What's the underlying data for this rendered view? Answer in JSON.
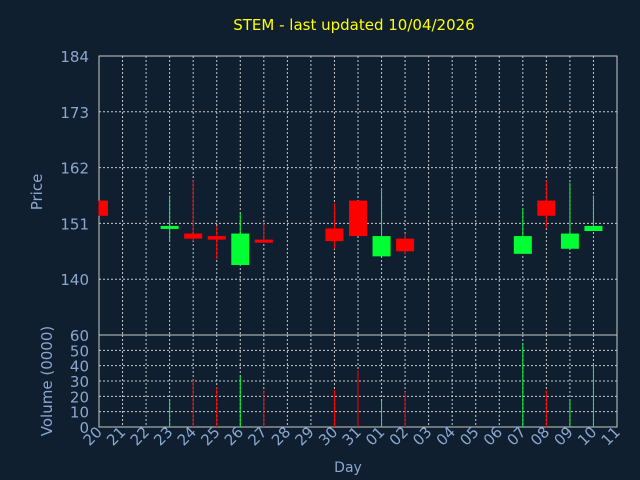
{
  "chart_data": {
    "type": "candlestick",
    "title": "STEM - last updated 10/04/2026",
    "price_panel": {
      "ylabel": "Price",
      "ylim": [
        129,
        184
      ],
      "yticks": [
        140,
        151,
        162,
        173,
        184
      ],
      "grid": true
    },
    "volume_panel": {
      "ylabel": "Volume (0000)",
      "ylim": [
        0,
        60
      ],
      "yticks": [
        0,
        10,
        20,
        30,
        40,
        50,
        60
      ],
      "grid": true
    },
    "xlabel": "Day",
    "x_ticks": [
      "20",
      "21",
      "22",
      "23",
      "24",
      "25",
      "26",
      "27",
      "28",
      "29",
      "30",
      "31",
      "01",
      "02",
      "03",
      "04",
      "05",
      "06",
      "07",
      "08",
      "09",
      "10",
      "11"
    ],
    "candles": [
      {
        "day": "20",
        "open": 155.5,
        "high": 155.5,
        "low": 152.5,
        "close": 152.5
      },
      {
        "day": "23",
        "open": 150.0,
        "high": 156.5,
        "low": 147.5,
        "close": 150.5
      },
      {
        "day": "24",
        "open": 149.0,
        "high": 159.5,
        "low": 147.5,
        "close": 148.0
      },
      {
        "day": "25",
        "open": 148.5,
        "high": 150.5,
        "low": 144.0,
        "close": 147.8
      },
      {
        "day": "26",
        "open": 142.8,
        "high": 153.0,
        "low": 142.8,
        "close": 149.0
      },
      {
        "day": "27",
        "open": 147.8,
        "high": 151.0,
        "low": 147.2,
        "close": 147.2
      },
      {
        "day": "30",
        "open": 150.0,
        "high": 155.0,
        "low": 146.0,
        "close": 147.5
      },
      {
        "day": "31",
        "open": 155.5,
        "high": 155.5,
        "low": 148.5,
        "close": 148.5
      },
      {
        "day": "01",
        "open": 144.5,
        "high": 158.0,
        "low": 144.5,
        "close": 148.5
      },
      {
        "day": "02",
        "open": 148.0,
        "high": 149.0,
        "low": 145.0,
        "close": 145.5
      },
      {
        "day": "07",
        "open": 145.0,
        "high": 154.0,
        "low": 145.0,
        "close": 148.5
      },
      {
        "day": "08",
        "open": 155.5,
        "high": 159.5,
        "low": 150.0,
        "close": 152.5
      },
      {
        "day": "09",
        "open": 146.0,
        "high": 159.0,
        "low": 146.0,
        "close": 149.0
      },
      {
        "day": "10",
        "open": 149.5,
        "high": 156.5,
        "low": 149.5,
        "close": 150.5
      }
    ],
    "volume": [
      {
        "day": "23",
        "value": 18,
        "direction": "up"
      },
      {
        "day": "24",
        "value": 31,
        "direction": "down"
      },
      {
        "day": "25",
        "value": 26,
        "direction": "down"
      },
      {
        "day": "26",
        "value": 33,
        "direction": "up"
      },
      {
        "day": "27",
        "value": 24,
        "direction": "down"
      },
      {
        "day": "30",
        "value": 24,
        "direction": "down"
      },
      {
        "day": "31",
        "value": 37,
        "direction": "down"
      },
      {
        "day": "01",
        "value": 17,
        "direction": "up"
      },
      {
        "day": "02",
        "value": 23,
        "direction": "down"
      },
      {
        "day": "07",
        "value": 54,
        "direction": "up"
      },
      {
        "day": "08",
        "value": 24,
        "direction": "down"
      },
      {
        "day": "09",
        "value": 18,
        "direction": "up"
      },
      {
        "day": "10",
        "value": 41,
        "direction": "up"
      }
    ],
    "colors": {
      "background": "#0f1f30",
      "title": "#ffff00",
      "axis_text": "#8aa7cf",
      "grid": "#c8c8c8",
      "frame": "#c8c8c8",
      "up": "#00ff33",
      "down": "#ff0000"
    }
  }
}
